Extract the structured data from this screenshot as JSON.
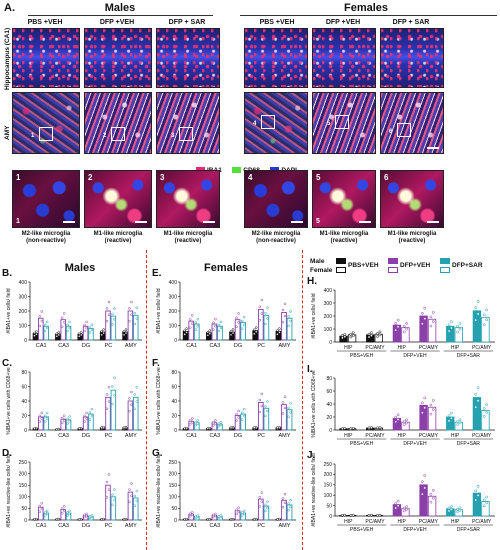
{
  "panel_a": {
    "letter": "A.",
    "males_title": "Males",
    "females_title": "Females",
    "conditions_males": [
      "PBS +VEH",
      "DFP +VEH",
      "DFP + SAR"
    ],
    "conditions_females": [
      "PBS +VEH",
      "DFP +VEH",
      "DFP + SAR"
    ],
    "row_labels": [
      "Hippocampus (CA1)",
      "AMY"
    ],
    "legend": [
      "IBA1",
      "CD68",
      "DAPI"
    ],
    "legend_colors": [
      "#e8267a",
      "#52e03a",
      "#2a36d0"
    ],
    "box_numbers": [
      "1",
      "2",
      "3",
      "4",
      "5",
      "6"
    ],
    "zoom_labels": [
      [
        "M2-like microglia",
        "(non-reactive)"
      ],
      [
        "M1-like microglia",
        "(reactive)"
      ],
      [
        "M1-like microglia",
        "(reactive)"
      ],
      [
        "M2-like microglia",
        "(non-reactive)"
      ],
      [
        "M1-like microglia",
        "(reactive)"
      ],
      [
        "M1-like microglia",
        "(reactive)"
      ]
    ]
  },
  "colors": {
    "pbs_veh": "#111111",
    "dfp_veh": "#8b3fa8",
    "dfp_sar": "#25a1b0",
    "separator": "#d8261d"
  },
  "males_title": "Males",
  "females_title": "Females",
  "legend_right": {
    "male": "Male",
    "female": "Female",
    "series": [
      "PBS+VEH",
      "DFP+VEH",
      "DFP+SAR"
    ]
  },
  "chart_data": [
    {
      "id": "B",
      "letter": "B.",
      "type": "bar",
      "ylabel": "#IBA1+ve cells/ field",
      "categories": [
        "CA1",
        "CA3",
        "DG",
        "PC",
        "AMY"
      ],
      "ylim": [
        0,
        400
      ],
      "yticks": [
        0,
        100,
        200,
        300,
        400
      ],
      "series": [
        {
          "name": "PBS+VEH",
          "values": [
            45,
            40,
            40,
            55,
            55
          ]
        },
        {
          "name": "DFP+VEH",
          "values": [
            150,
            140,
            95,
            200,
            200
          ]
        },
        {
          "name": "DFP+SAR",
          "values": [
            95,
            95,
            80,
            165,
            170
          ]
        }
      ]
    },
    {
      "id": "C",
      "letter": "C.",
      "type": "bar",
      "ylabel": "%IBA1+ve cells with CD68+ve",
      "categories": [
        "CA1",
        "CA3",
        "DG",
        "PC",
        "AMY"
      ],
      "ylim": [
        0,
        80
      ],
      "yticks": [
        0,
        20,
        40,
        60,
        80
      ],
      "series": [
        {
          "name": "PBS+VEH",
          "values": [
            2,
            1,
            2,
            3,
            3
          ]
        },
        {
          "name": "DFP+VEH",
          "values": [
            18,
            15,
            18,
            45,
            40
          ]
        },
        {
          "name": "DFP+SAR",
          "values": [
            18,
            14,
            22,
            55,
            45
          ]
        }
      ]
    },
    {
      "id": "D",
      "letter": "D.",
      "type": "bar",
      "ylabel": "#IBA1+ve reactive-like cells/ field",
      "categories": [
        "CA1",
        "CA3",
        "DG",
        "PC",
        "AMY"
      ],
      "ylim": [
        0,
        250
      ],
      "yticks": [
        0,
        50,
        100,
        150,
        200,
        250
      ],
      "series": [
        {
          "name": "PBS+VEH",
          "values": [
            3,
            3,
            3,
            3,
            3
          ]
        },
        {
          "name": "DFP+VEH",
          "values": [
            55,
            45,
            20,
            150,
            120
          ]
        },
        {
          "name": "DFP+SAR",
          "values": [
            30,
            30,
            15,
            100,
            95
          ]
        }
      ]
    },
    {
      "id": "E",
      "letter": "E.",
      "type": "bar",
      "ylabel": "#IBA1+ve cells/ field",
      "categories": [
        "CA1",
        "CA3",
        "DG",
        "PC",
        "AMY"
      ],
      "ylim": [
        0,
        400
      ],
      "yticks": [
        0,
        100,
        200,
        300,
        400
      ],
      "series": [
        {
          "name": "PBS+VEH",
          "values": [
            60,
            50,
            55,
            65,
            60
          ]
        },
        {
          "name": "DFP+VEH",
          "values": [
            130,
            110,
            140,
            210,
            190
          ]
        },
        {
          "name": "DFP+SAR",
          "values": [
            110,
            95,
            120,
            170,
            150
          ]
        }
      ]
    },
    {
      "id": "F",
      "letter": "F.",
      "type": "bar",
      "ylabel": "%IBA1+ve cells with CD68+ve",
      "categories": [
        "CA1",
        "CA3",
        "DG",
        "PC",
        "AMY"
      ],
      "ylim": [
        0,
        80
      ],
      "yticks": [
        0,
        20,
        40,
        60,
        80
      ],
      "series": [
        {
          "name": "PBS+VEH",
          "values": [
            2,
            2,
            3,
            3,
            3
          ]
        },
        {
          "name": "DFP+VEH",
          "values": [
            12,
            10,
            20,
            38,
            35
          ]
        },
        {
          "name": "DFP+SAR",
          "values": [
            10,
            8,
            22,
            30,
            28
          ]
        }
      ]
    },
    {
      "id": "G",
      "letter": "G.",
      "type": "bar",
      "ylabel": "#IBA1+ve reactive-like cells/ field",
      "categories": [
        "CA1",
        "CA3",
        "DG",
        "PC",
        "AMY"
      ],
      "ylim": [
        0,
        250
      ],
      "yticks": [
        0,
        50,
        100,
        150,
        200,
        250
      ],
      "series": [
        {
          "name": "PBS+VEH",
          "values": [
            3,
            3,
            3,
            3,
            3
          ]
        },
        {
          "name": "DFP+VEH",
          "values": [
            25,
            20,
            40,
            90,
            85
          ]
        },
        {
          "name": "DFP+SAR",
          "values": [
            15,
            15,
            30,
            60,
            65
          ]
        }
      ]
    },
    {
      "id": "H",
      "letter": "H.",
      "type": "bar",
      "ylabel": "#IBA1+ve cells/ field",
      "categories": [
        "HIP",
        "PC/AMY",
        "HIP",
        "PC/AMY",
        "HIP",
        "PC/AMY"
      ],
      "groups": [
        "PBS+VEH",
        "DFP+VEH",
        "DFP+SAR"
      ],
      "ylim": [
        0,
        400
      ],
      "yticks": [
        0,
        100,
        200,
        300,
        400
      ],
      "series": [
        {
          "name": "Male",
          "values": [
            45,
            55,
            130,
            200,
            120,
            240
          ]
        },
        {
          "name": "Female",
          "values": [
            55,
            60,
            110,
            175,
            110,
            190
          ]
        }
      ]
    },
    {
      "id": "I",
      "letter": "I.",
      "type": "bar",
      "ylabel": "%IBA1+ve cells with CD68+ve",
      "categories": [
        "HIP",
        "PC/AMY",
        "HIP",
        "PC/AMY",
        "HIP",
        "PC/AMY"
      ],
      "groups": [
        "PBS+VEH",
        "DFP+VEH",
        "DFP+SAR"
      ],
      "ylim": [
        0,
        80
      ],
      "yticks": [
        0,
        20,
        40,
        60,
        80
      ],
      "series": [
        {
          "name": "Male",
          "values": [
            2,
            3,
            18,
            38,
            20,
            50
          ]
        },
        {
          "name": "Female",
          "values": [
            2,
            3,
            12,
            35,
            12,
            30
          ]
        }
      ]
    },
    {
      "id": "J",
      "letter": "J.",
      "type": "bar",
      "ylabel": "#IBA1+ve reactive-like cells/ field",
      "categories": [
        "HIP",
        "PC/AMY",
        "HIP",
        "PC/AMY",
        "HIP",
        "PC/AMY"
      ],
      "groups": [
        "PBS+VEH",
        "DFP+VEH",
        "DFP+SAR"
      ],
      "ylim": [
        0,
        250
      ],
      "yticks": [
        0,
        50,
        100,
        150,
        200,
        250
      ],
      "series": [
        {
          "name": "Male",
          "values": [
            3,
            3,
            55,
            150,
            35,
            110
          ]
        },
        {
          "name": "Female",
          "values": [
            3,
            3,
            35,
            95,
            30,
            70
          ]
        }
      ]
    }
  ]
}
